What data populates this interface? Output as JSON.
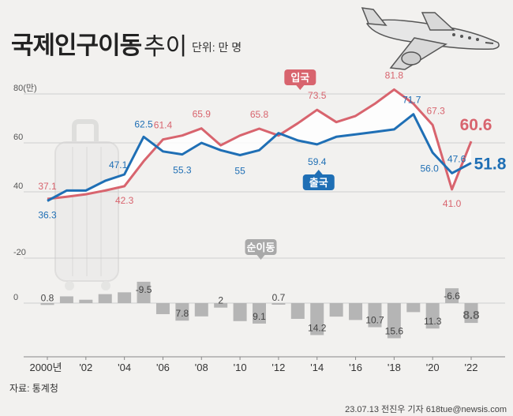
{
  "title": "국제인구이동",
  "subtitle": "추이",
  "unit_label": "단위: 만 명",
  "source": "자료: 통계청",
  "credit": "23.07.13 전진우 기자 618tue@newsis.com",
  "colors": {
    "inbound": "#d8646e",
    "outbound": "#1f6fb5",
    "net_bar": "#b5b5b5",
    "background": "#f2f1ef"
  },
  "icons": [
    "airplane-icon",
    "suitcase-icon"
  ],
  "chart_data": [
    {
      "type": "line",
      "x": [
        2000,
        2001,
        2002,
        2003,
        2004,
        2005,
        2006,
        2007,
        2008,
        2009,
        2010,
        2011,
        2012,
        2013,
        2014,
        2015,
        2016,
        2017,
        2018,
        2019,
        2020,
        2021,
        2022
      ],
      "series": [
        {
          "name": "입국",
          "color": "#d8646e",
          "values": [
            37.1,
            38.0,
            39.0,
            40.5,
            42.3,
            52.5,
            61.4,
            63.0,
            65.9,
            59.0,
            63.0,
            65.8,
            63.0,
            68.0,
            73.5,
            68.5,
            71.0,
            76.0,
            81.8,
            76.0,
            67.3,
            41.0,
            60.6
          ]
        },
        {
          "name": "출국",
          "color": "#1f6fb5",
          "values": [
            36.3,
            40.5,
            40.5,
            44.5,
            47.1,
            62.5,
            56.5,
            55.3,
            60.0,
            57.0,
            55.0,
            57.0,
            64.0,
            61.0,
            59.4,
            62.5,
            63.5,
            64.5,
            65.5,
            71.7,
            56.0,
            47.6,
            51.8
          ]
        }
      ],
      "labels": {
        "inbound": [
          {
            "year": 2000,
            "text": "37.1"
          },
          {
            "year": 2004,
            "text": "42.3"
          },
          {
            "year": 2006,
            "text": "61.4"
          },
          {
            "year": 2008,
            "text": "65.9"
          },
          {
            "year": 2011,
            "text": "65.8"
          },
          {
            "year": 2014,
            "text": "73.5"
          },
          {
            "year": 2018,
            "text": "81.8"
          },
          {
            "year": 2020,
            "text": "67.3"
          },
          {
            "year": 2021,
            "text": "41.0"
          },
          {
            "year": 2022,
            "text": "60.6"
          }
        ],
        "outbound": [
          {
            "year": 2000,
            "text": "36.3"
          },
          {
            "year": 2004,
            "text": "47.1"
          },
          {
            "year": 2005,
            "text": "62.5"
          },
          {
            "year": 2007,
            "text": "55.3"
          },
          {
            "year": 2010,
            "text": "55"
          },
          {
            "year": 2014,
            "text": "59.4"
          },
          {
            "year": 2019,
            "text": "71.7"
          },
          {
            "year": 2020,
            "text": "56.0"
          },
          {
            "year": 2021,
            "text": "47.6"
          },
          {
            "year": 2022,
            "text": "51.8"
          }
        ]
      },
      "yticks": [
        "80(만)",
        "60",
        "40"
      ],
      "ylim": [
        30,
        85
      ]
    },
    {
      "type": "bar",
      "name": "순이동",
      "x": [
        2000,
        2001,
        2002,
        2003,
        2004,
        2005,
        2006,
        2007,
        2008,
        2009,
        2010,
        2011,
        2012,
        2013,
        2014,
        2015,
        2016,
        2017,
        2018,
        2019,
        2020,
        2021,
        2022
      ],
      "values": [
        0.8,
        -3.0,
        -1.5,
        -4.0,
        -4.8,
        -9.5,
        4.9,
        7.8,
        5.9,
        2.0,
        8.0,
        9.1,
        0.7,
        7.0,
        14.2,
        6.0,
        7.5,
        10.7,
        15.6,
        4.0,
        11.3,
        -6.6,
        8.8
      ],
      "labels": [
        {
          "year": 2000,
          "text": "0.8"
        },
        {
          "year": 2005,
          "text": "-9.5"
        },
        {
          "year": 2007,
          "text": "7.8"
        },
        {
          "year": 2009,
          "text": "2"
        },
        {
          "year": 2011,
          "text": "9.1"
        },
        {
          "year": 2012,
          "text": "0.7"
        },
        {
          "year": 2014,
          "text": "14.2"
        },
        {
          "year": 2017,
          "text": "10.7"
        },
        {
          "year": 2018,
          "text": "15.6"
        },
        {
          "year": 2020,
          "text": "11.3"
        },
        {
          "year": 2021,
          "text": "-6.6"
        },
        {
          "year": 2022,
          "text": "8.8"
        }
      ],
      "yticks": [
        "0",
        "-20"
      ],
      "ylim": [
        -20,
        20
      ]
    }
  ],
  "x_tick_labels": [
    {
      "year": 2000,
      "text": "2000년"
    },
    {
      "year": 2002,
      "text": "'02"
    },
    {
      "year": 2004,
      "text": "'04"
    },
    {
      "year": 2006,
      "text": "'06"
    },
    {
      "year": 2008,
      "text": "'08"
    },
    {
      "year": 2010,
      "text": "'10"
    },
    {
      "year": 2012,
      "text": "'12"
    },
    {
      "year": 2014,
      "text": "'14"
    },
    {
      "year": 2016,
      "text": "'16"
    },
    {
      "year": 2018,
      "text": "'18"
    },
    {
      "year": 2020,
      "text": "'20"
    },
    {
      "year": 2022,
      "text": "'22"
    }
  ]
}
